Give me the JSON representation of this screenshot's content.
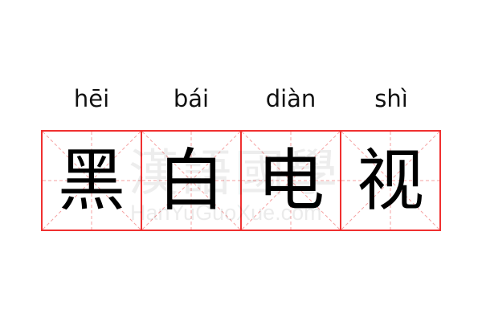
{
  "entries": [
    {
      "pinyin": "hēi",
      "char": "黑"
    },
    {
      "pinyin": "bái",
      "char": "白"
    },
    {
      "pinyin": "diàn",
      "char": "电"
    },
    {
      "pinyin": "shì",
      "char": "视"
    }
  ],
  "watermark": {
    "chinese": "漢語國學",
    "latin": "HanYuGuoXue.com"
  },
  "colors": {
    "border": "#f03030",
    "guide": "#f5a0a0"
  }
}
